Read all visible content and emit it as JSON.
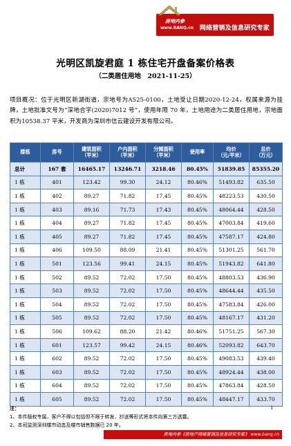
{
  "header": {
    "brand_logo_word": "房地内参",
    "brand_url": "www.BANQ.cn",
    "brand_slogan": "网络营销及信息研究专家"
  },
  "title": "光明区凯旋君庭 1 栋住宅开盘备案价格表",
  "subtitle": "（二类居住用地　2021-11-25）",
  "overview": "项目概况：位于光明区新湖街道，宗地号为A525-0100，土地受让日期2020-12-24，权属来源为挂牌，土地批准文号为“深地合字(2020)7012 号”，使用年限 70 年，土地用途为二类居住用地，宗地面积为10538.37 平米，开发商为深圳市信云建设开发有限公司。",
  "table": {
    "headers": [
      "楼栋",
      "房号",
      "建筑面积\n（平米）",
      "户内面积\n（平米）",
      "分摊面积\n（平米）",
      "使用率",
      "均价\n（元/平米）",
      "总价\n（万元）"
    ],
    "total": [
      "总计",
      "167 套",
      "16465.17",
      "13246.71",
      "3218.46",
      "80.45%",
      "51839.85",
      "85355.20"
    ],
    "rows": [
      [
        "1 栋",
        "401",
        "123.42",
        "99.30",
        "24.12",
        "80.46%",
        "51493.82",
        "635.50"
      ],
      [
        "1 栋",
        "402",
        "89.27",
        "71.82",
        "17.45",
        "80.45%",
        "48223.53",
        "430.50"
      ],
      [
        "1 栋",
        "403",
        "89.16",
        "71.73",
        "17.43",
        "80.45%",
        "48064.44",
        "428.50"
      ],
      [
        "1 栋",
        "404",
        "89.27",
        "71.82",
        "17.45",
        "80.45%",
        "47003.84",
        "419.60"
      ],
      [
        "1 栋",
        "405",
        "89.27",
        "71.82",
        "17.45",
        "80.45%",
        "47587.17",
        "424.80"
      ],
      [
        "1 栋",
        "406",
        "109.50",
        "88.09",
        "21.41",
        "80.45%",
        "51301.25",
        "561.70"
      ],
      [
        "1 栋",
        "501",
        "123.56",
        "99.41",
        "24.15",
        "80.45%",
        "51943.82",
        "641.80"
      ],
      [
        "1 栋",
        "502",
        "89.52",
        "72.02",
        "17.50",
        "80.45%",
        "48803.53",
        "436.90"
      ],
      [
        "1 栋",
        "503",
        "89.52",
        "72.02",
        "17.50",
        "80.45%",
        "48644.44",
        "435.50"
      ],
      [
        "1 栋",
        "504",
        "89.52",
        "72.02",
        "17.50",
        "80.45%",
        "47583.84",
        "426.00"
      ],
      [
        "1 栋",
        "505",
        "89.52",
        "72.02",
        "17.50",
        "80.45%",
        "48167.17",
        "431.20"
      ],
      [
        "1 栋",
        "506",
        "109.62",
        "88.20",
        "21.42",
        "80.46%",
        "51751.25",
        "567.30"
      ],
      [
        "1 栋",
        "601",
        "123.57",
        "99.42",
        "24.15",
        "80.46%",
        "52093.82",
        "643.70"
      ],
      [
        "1 栋",
        "602",
        "89.52",
        "72.02",
        "17.50",
        "80.45%",
        "49083.53",
        "439.40"
      ],
      [
        "1 栋",
        "603",
        "89.52",
        "72.02",
        "17.50",
        "80.45%",
        "48924.44",
        "438.00"
      ],
      [
        "1 栋",
        "604",
        "89.52",
        "72.02",
        "17.50",
        "80.45%",
        "47863.84",
        "428.50"
      ],
      [
        "1 栋",
        "605",
        "89.52",
        "72.02",
        "17.50",
        "80.45%",
        "48447.17",
        "433.70"
      ]
    ]
  },
  "notes": {
    "heading": "注：",
    "items": [
      "1、本件版权专属，客户不得以包括但不限于转发、抄送等形式将本件向第三方透露。",
      "2、本司监测深圳楼市动态及楼市销售数据已 20 年。"
    ],
    "page_number": "1"
  },
  "footer": "房地内参《房地产网络营销及信息研究专家》 www.banq.cn"
}
